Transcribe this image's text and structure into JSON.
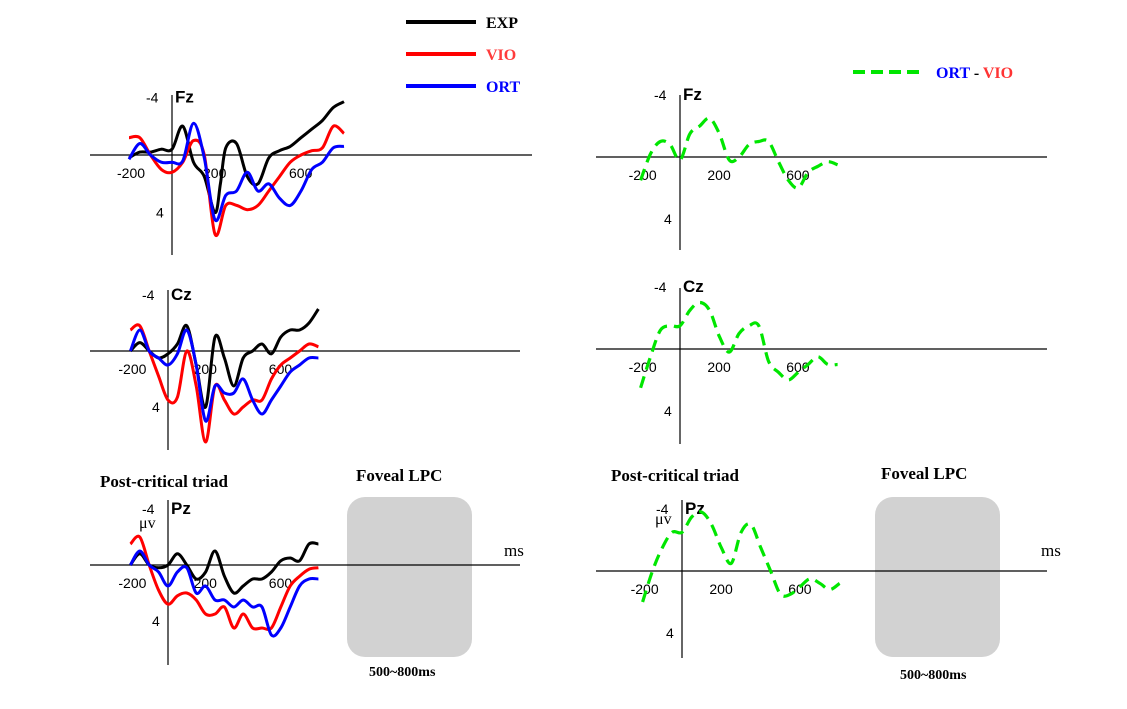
{
  "legend": [
    {
      "label": "EXP",
      "color": "#000000"
    },
    {
      "label": "VIO",
      "color": "#ff0000"
    },
    {
      "label": "ORT",
      "color": "#0000ff"
    }
  ],
  "diff_legend": {
    "label_a": "ORT",
    "sep": " - ",
    "label_b": "VIO",
    "color": "#00e600",
    "color_a": "#0000ff",
    "color_b": "#ff3333"
  },
  "annotations": {
    "left_triad": "Post-critical triad",
    "left_lpc": "Foveal LPC",
    "left_window": "500~800ms",
    "right_triad": "Post-critical triad",
    "right_lpc": "Foveal LPC",
    "right_window": "500~800ms",
    "unit_uv": "μv",
    "unit_ms": "ms"
  },
  "chart_data": [
    {
      "type": "line",
      "panel": "left",
      "electrode": "Fz",
      "xlim": [
        -200,
        800
      ],
      "ylim": [
        6,
        -5
      ],
      "xticks": [
        "-200",
        "200",
        "600"
      ],
      "yticks": [
        "-4",
        "4"
      ],
      "series": [
        {
          "name": "EXP",
          "color": "#000000",
          "x": [
            -200,
            -150,
            -100,
            -50,
            0,
            50,
            100,
            150,
            200,
            225,
            250,
            300,
            350,
            400,
            450,
            500,
            550,
            600,
            650,
            700,
            750,
            800
          ],
          "y": [
            0.2,
            -0.2,
            -0.2,
            -0.4,
            -0.4,
            -2.0,
            0.5,
            1.5,
            4,
            2.0,
            -0.5,
            -0.8,
            1.5,
            2,
            0.2,
            -0.3,
            -0.6,
            -1.2,
            -1.8,
            -2.4,
            -3.3,
            -3.7
          ]
        },
        {
          "name": "VIO",
          "color": "#ff0000",
          "x": [
            -200,
            -150,
            -100,
            -50,
            0,
            50,
            100,
            150,
            200,
            250,
            300,
            350,
            400,
            450,
            500,
            550,
            600,
            650,
            700,
            750,
            800
          ],
          "y": [
            -1.2,
            -1.2,
            0,
            1.0,
            1.2,
            0.5,
            -1.0,
            0,
            5.5,
            3.5,
            3.5,
            3.8,
            3.5,
            2.5,
            1.5,
            0.5,
            0,
            -0.3,
            -0.5,
            -2.0,
            -1.5
          ]
        },
        {
          "name": "ORT",
          "color": "#0000ff",
          "x": [
            -200,
            -150,
            -100,
            -50,
            0,
            50,
            100,
            150,
            200,
            250,
            300,
            350,
            400,
            450,
            500,
            550,
            600,
            650,
            700,
            750,
            800
          ],
          "y": [
            0.3,
            -0.8,
            0,
            0.5,
            0.5,
            0.4,
            -2.2,
            0.2,
            4.5,
            2.8,
            2.5,
            1.2,
            2.5,
            2.0,
            3.0,
            3.5,
            2.5,
            1.0,
            0.5,
            -0.5,
            -0.6
          ]
        }
      ]
    },
    {
      "type": "line",
      "panel": "left",
      "electrode": "Cz",
      "xlim": [
        -200,
        800
      ],
      "ylim": [
        6,
        -5
      ],
      "xticks": [
        "-200",
        "200",
        "600"
      ],
      "yticks": [
        "-4",
        "4"
      ],
      "series": [
        {
          "name": "EXP",
          "color": "#000000",
          "x": [
            -200,
            -150,
            -100,
            -50,
            0,
            50,
            100,
            150,
            200,
            250,
            300,
            350,
            400,
            450,
            500,
            550,
            600,
            650,
            700,
            750,
            800
          ],
          "y": [
            0,
            -0.6,
            0,
            0.5,
            0.2,
            -0.5,
            -1.8,
            1.0,
            4,
            -1.0,
            0.5,
            2.5,
            0.5,
            0,
            -0.5,
            0.2,
            -1.0,
            -1.5,
            -1.5,
            -2.0,
            -3.0
          ]
        },
        {
          "name": "VIO",
          "color": "#ff0000",
          "x": [
            -200,
            -150,
            -100,
            -50,
            0,
            50,
            100,
            150,
            200,
            250,
            300,
            350,
            400,
            450,
            500,
            550,
            600,
            650,
            700,
            750,
            800
          ],
          "y": [
            -1.5,
            -1.8,
            0,
            1.8,
            3.5,
            3.3,
            0,
            2.5,
            6.5,
            2.5,
            3.5,
            4.5,
            4.0,
            3.5,
            3.5,
            2.0,
            1.0,
            0.5,
            0,
            -0.5,
            -0.3
          ]
        },
        {
          "name": "ORT",
          "color": "#0000ff",
          "x": [
            -200,
            -150,
            -100,
            -50,
            0,
            50,
            100,
            150,
            200,
            250,
            300,
            350,
            400,
            450,
            500,
            550,
            600,
            650,
            700,
            750,
            800
          ],
          "y": [
            0,
            -1.5,
            0,
            0.5,
            1.0,
            0.2,
            -1.5,
            1.0,
            5.0,
            2.5,
            3.0,
            3.0,
            2.0,
            3.5,
            4.5,
            3.5,
            2.5,
            1.5,
            1.0,
            0.5,
            0.5
          ]
        }
      ]
    },
    {
      "type": "line",
      "panel": "left",
      "electrode": "Pz",
      "xlim": [
        -200,
        800
      ],
      "ylim": [
        6,
        -5
      ],
      "xticks": [
        "-200",
        "200",
        "600"
      ],
      "yticks": [
        "-4",
        "4"
      ],
      "series": [
        {
          "name": "EXP",
          "color": "#000000",
          "x": [
            -200,
            -150,
            -100,
            -50,
            0,
            50,
            100,
            150,
            200,
            250,
            300,
            350,
            400,
            450,
            500,
            550,
            600,
            650,
            700,
            750,
            800
          ],
          "y": [
            0,
            -0.8,
            0,
            0.2,
            0,
            -0.8,
            0,
            1.0,
            0.5,
            -1.0,
            0.8,
            2.0,
            1.5,
            1.0,
            1.0,
            0.5,
            -0.3,
            -0.5,
            -0.3,
            -1.5,
            -1.5
          ]
        },
        {
          "name": "VIO",
          "color": "#ff0000",
          "x": [
            -200,
            -150,
            -100,
            -50,
            0,
            50,
            100,
            150,
            200,
            250,
            300,
            350,
            400,
            450,
            500,
            550,
            600,
            650,
            700,
            750,
            800
          ],
          "y": [
            -1.5,
            -2,
            0,
            1.8,
            2.8,
            2.2,
            2.0,
            2.5,
            3.5,
            3.5,
            3.0,
            4.5,
            3.5,
            4.5,
            4.5,
            4.5,
            3.0,
            1.5,
            0.8,
            0.3,
            0.2
          ]
        },
        {
          "name": "ORT",
          "color": "#0000ff",
          "x": [
            -200,
            -150,
            -100,
            -50,
            0,
            50,
            100,
            150,
            200,
            250,
            300,
            350,
            400,
            450,
            500,
            550,
            600,
            650,
            700,
            750,
            800
          ],
          "y": [
            0,
            -1.0,
            0,
            0.5,
            1.5,
            0.5,
            0.2,
            2.0,
            1.5,
            2.5,
            2.5,
            3.0,
            2.5,
            3.0,
            3.0,
            5.0,
            4.5,
            3.0,
            1.5,
            1.0,
            1.0
          ]
        }
      ]
    },
    {
      "type": "line",
      "panel": "right",
      "electrode": "Fz",
      "xlim": [
        -200,
        800
      ],
      "ylim": [
        6,
        -5
      ],
      "xticks": [
        "-200",
        "200",
        "600"
      ],
      "yticks": [
        "-4",
        "4"
      ],
      "series": [
        {
          "name": "ORT - VIO",
          "color": "#00e600",
          "x": [
            -200,
            -150,
            -100,
            -50,
            0,
            50,
            100,
            150,
            200,
            250,
            300,
            350,
            400,
            450,
            500,
            550,
            600,
            650,
            700,
            750,
            800
          ],
          "y": [
            1.5,
            -0.2,
            -1.0,
            -0.8,
            0.2,
            -1.5,
            -2.0,
            -2.5,
            -1.5,
            0.2,
            0,
            -0.8,
            -1.0,
            -1,
            0.3,
            1.5,
            2.0,
            1.0,
            0.6,
            0.3,
            0.5
          ]
        }
      ]
    },
    {
      "type": "line",
      "panel": "right",
      "electrode": "Cz",
      "xlim": [
        -200,
        800
      ],
      "ylim": [
        6,
        -5
      ],
      "xticks": [
        "-200",
        "200",
        "600"
      ],
      "yticks": [
        "-4",
        "4"
      ],
      "series": [
        {
          "name": "ORT - VIO",
          "color": "#00e600",
          "x": [
            -200,
            -150,
            -100,
            -50,
            0,
            50,
            100,
            150,
            200,
            250,
            300,
            350,
            400,
            450,
            500,
            550,
            600,
            650,
            700,
            750,
            800
          ],
          "y": [
            2.5,
            0.5,
            -1.2,
            -1.5,
            -1.5,
            -2.5,
            -3,
            -2.5,
            -0.8,
            0.2,
            -1.0,
            -1.5,
            -1.5,
            0.8,
            1.5,
            2.0,
            1.5,
            1.0,
            0.5,
            1.0,
            1.0
          ]
        }
      ]
    },
    {
      "type": "line",
      "panel": "right",
      "electrode": "Pz",
      "xlim": [
        -200,
        800
      ],
      "ylim": [
        6,
        -5
      ],
      "xticks": [
        "-200",
        "200",
        "600"
      ],
      "yticks": [
        "-4",
        "4"
      ],
      "series": [
        {
          "name": "ORT - VIO",
          "color": "#00e600",
          "x": [
            -200,
            -150,
            -100,
            -50,
            0,
            50,
            100,
            150,
            200,
            250,
            300,
            350,
            400,
            450,
            500,
            550,
            600,
            650,
            700,
            750,
            800
          ],
          "y": [
            2.0,
            0,
            -1.5,
            -2.5,
            -2.5,
            -3.5,
            -3.8,
            -3.0,
            -1.5,
            -0.5,
            -2.5,
            -3,
            -1.5,
            0,
            1.5,
            1.5,
            1.0,
            0.5,
            0.8,
            1.2,
            0.8
          ]
        }
      ]
    }
  ]
}
